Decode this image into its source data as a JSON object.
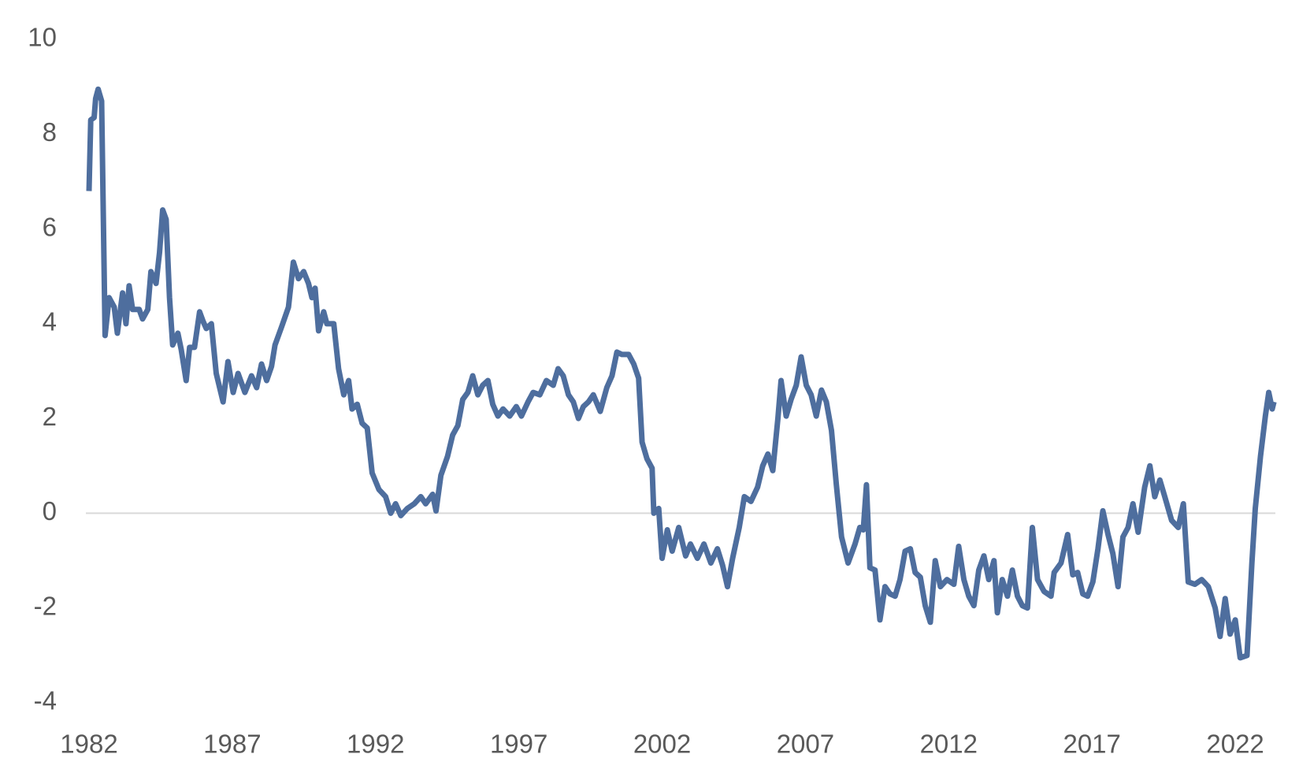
{
  "chart_data": {
    "type": "line",
    "x": [
      1982.0,
      1982.06,
      1982.18,
      1982.23,
      1982.32,
      1982.44,
      1982.56,
      1982.7,
      1982.88,
      1982.99,
      1983.17,
      1983.29,
      1983.4,
      1983.52,
      1983.75,
      1983.87,
      1984.05,
      1984.16,
      1984.34,
      1984.46,
      1984.57,
      1984.69,
      1984.81,
      1984.92,
      1985.1,
      1985.22,
      1985.39,
      1985.51,
      1985.68,
      1985.86,
      1985.98,
      1986.09,
      1986.27,
      1986.44,
      1986.68,
      1986.85,
      1987.03,
      1987.2,
      1987.44,
      1987.67,
      1987.85,
      1988.02,
      1988.2,
      1988.37,
      1988.49,
      1988.73,
      1988.96,
      1989.13,
      1989.31,
      1989.49,
      1989.66,
      1989.78,
      1989.89,
      1990.01,
      1990.19,
      1990.3,
      1990.54,
      1990.71,
      1990.89,
      1991.06,
      1991.18,
      1991.36,
      1991.53,
      1991.71,
      1991.88,
      1992.12,
      1992.35,
      1992.53,
      1992.7,
      1992.88,
      1993.11,
      1993.35,
      1993.58,
      1993.75,
      1993.99,
      1994.11,
      1994.28,
      1994.51,
      1994.69,
      1994.87,
      1995.04,
      1995.22,
      1995.39,
      1995.57,
      1995.74,
      1995.92,
      1996.09,
      1996.27,
      1996.45,
      1996.68,
      1996.91,
      1997.09,
      1997.32,
      1997.5,
      1997.73,
      1997.96,
      1998.2,
      1998.37,
      1998.55,
      1998.73,
      1998.9,
      1999.08,
      1999.25,
      1999.43,
      1999.6,
      1999.84,
      2000.07,
      2000.25,
      2000.42,
      2000.6,
      2000.83,
      2001.01,
      2001.18,
      2001.3,
      2001.47,
      2001.65,
      2001.71,
      2001.88,
      2002.0,
      2002.18,
      2002.35,
      2002.58,
      2002.82,
      2002.99,
      2003.23,
      2003.46,
      2003.7,
      2003.93,
      2004.11,
      2004.28,
      2004.46,
      2004.69,
      2004.87,
      2005.1,
      2005.33,
      2005.51,
      2005.69,
      2005.86,
      2006.04,
      2006.15,
      2006.33,
      2006.5,
      2006.68,
      2006.85,
      2007.03,
      2007.2,
      2007.38,
      2007.56,
      2007.73,
      2007.91,
      2008.08,
      2008.26,
      2008.49,
      2008.73,
      2008.9,
      2009.02,
      2009.13,
      2009.25,
      2009.43,
      2009.6,
      2009.78,
      2009.95,
      2010.13,
      2010.3,
      2010.48,
      2010.66,
      2010.83,
      2011.01,
      2011.18,
      2011.36,
      2011.53,
      2011.71,
      2011.94,
      2012.18,
      2012.35,
      2012.53,
      2012.7,
      2012.88,
      2013.05,
      2013.23,
      2013.4,
      2013.58,
      2013.7,
      2013.87,
      2014.05,
      2014.22,
      2014.4,
      2014.57,
      2014.75,
      2014.92,
      2015.1,
      2015.33,
      2015.57,
      2015.68,
      2015.92,
      2016.15,
      2016.33,
      2016.5,
      2016.68,
      2016.85,
      2017.03,
      2017.21,
      2017.38,
      2017.56,
      2017.73,
      2017.91,
      2018.08,
      2018.26,
      2018.43,
      2018.61,
      2018.84,
      2019.02,
      2019.19,
      2019.37,
      2019.54,
      2019.78,
      2020.01,
      2020.19,
      2020.36,
      2020.59,
      2020.83,
      2021.06,
      2021.3,
      2021.47,
      2021.65,
      2021.82,
      2022.0,
      2022.17,
      2022.41,
      2022.58,
      2022.7,
      2022.88,
      2023.05,
      2023.17,
      2023.29,
      2023.35
    ],
    "series": [
      {
        "color": "#4e6e9e",
        "values": [
          6.8,
          8.3,
          8.35,
          8.75,
          8.95,
          8.7,
          3.75,
          4.55,
          4.35,
          3.8,
          4.65,
          4.0,
          4.8,
          4.3,
          4.3,
          4.1,
          4.3,
          5.1,
          4.85,
          5.5,
          6.4,
          6.2,
          4.55,
          3.55,
          3.8,
          3.45,
          2.8,
          3.5,
          3.5,
          4.25,
          4.05,
          3.9,
          4.0,
          2.95,
          2.35,
          3.2,
          2.55,
          2.95,
          2.55,
          2.9,
          2.65,
          3.15,
          2.8,
          3.1,
          3.55,
          3.95,
          4.35,
          5.3,
          4.95,
          5.1,
          4.85,
          4.55,
          4.75,
          3.85,
          4.25,
          4.0,
          4.0,
          3.05,
          2.5,
          2.8,
          2.2,
          2.3,
          1.9,
          1.8,
          0.85,
          0.5,
          0.35,
          0.0,
          0.2,
          -0.05,
          0.1,
          0.2,
          0.35,
          0.2,
          0.4,
          0.05,
          0.8,
          1.2,
          1.65,
          1.85,
          2.4,
          2.55,
          2.9,
          2.5,
          2.7,
          2.8,
          2.3,
          2.05,
          2.2,
          2.05,
          2.25,
          2.05,
          2.35,
          2.55,
          2.5,
          2.8,
          2.7,
          3.05,
          2.9,
          2.5,
          2.35,
          2.0,
          2.25,
          2.35,
          2.5,
          2.15,
          2.65,
          2.9,
          3.4,
          3.35,
          3.35,
          3.15,
          2.85,
          1.5,
          1.15,
          0.95,
          0.0,
          0.1,
          -0.95,
          -0.35,
          -0.8,
          -0.3,
          -0.9,
          -0.65,
          -0.95,
          -0.65,
          -1.05,
          -0.75,
          -1.1,
          -1.55,
          -0.95,
          -0.3,
          0.35,
          0.25,
          0.55,
          1.0,
          1.25,
          0.9,
          2.0,
          2.8,
          2.05,
          2.4,
          2.7,
          3.3,
          2.7,
          2.5,
          2.05,
          2.6,
          2.35,
          1.75,
          0.6,
          -0.5,
          -1.05,
          -0.65,
          -0.3,
          -0.35,
          0.6,
          -1.15,
          -1.2,
          -2.25,
          -1.55,
          -1.7,
          -1.75,
          -1.4,
          -0.8,
          -0.75,
          -1.25,
          -1.35,
          -1.95,
          -2.3,
          -1.0,
          -1.55,
          -1.4,
          -1.5,
          -0.7,
          -1.4,
          -1.75,
          -1.95,
          -1.2,
          -0.9,
          -1.4,
          -1.0,
          -2.1,
          -1.4,
          -1.75,
          -1.2,
          -1.75,
          -1.95,
          -2.0,
          -0.3,
          -1.4,
          -1.65,
          -1.75,
          -1.25,
          -1.05,
          -0.45,
          -1.3,
          -1.25,
          -1.7,
          -1.75,
          -1.45,
          -0.75,
          0.05,
          -0.45,
          -0.85,
          -1.55,
          -0.5,
          -0.3,
          0.2,
          -0.4,
          0.55,
          1.0,
          0.35,
          0.7,
          0.35,
          -0.15,
          -0.3,
          0.2,
          -1.45,
          -1.5,
          -1.4,
          -1.55,
          -2.0,
          -2.6,
          -1.8,
          -2.55,
          -2.25,
          -3.05,
          -3.0,
          -1.05,
          0.1,
          1.2,
          2.05,
          2.55,
          2.2,
          2.35
        ]
      }
    ],
    "xlim": [
      1982,
      2023.4
    ],
    "xticks": [
      1982,
      1987,
      1992,
      1997,
      2002,
      2007,
      2012,
      2017,
      2022
    ],
    "ylim": [
      -4,
      10
    ],
    "yticks": [
      -4,
      -2,
      0,
      2,
      4,
      6,
      8,
      10
    ],
    "grid": false
  }
}
